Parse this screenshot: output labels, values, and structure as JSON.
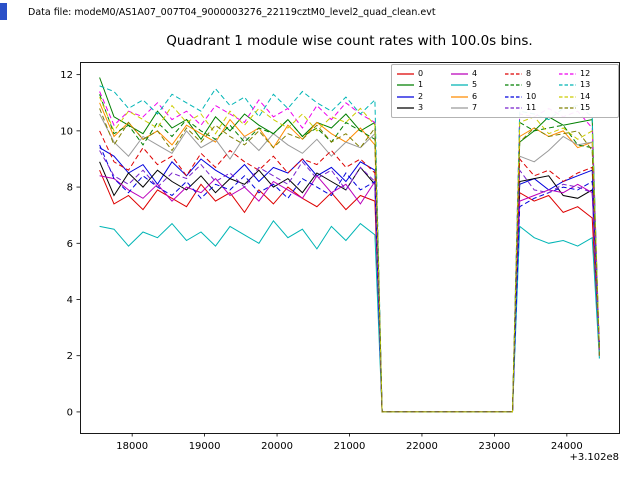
{
  "header": {
    "data_file_label": "Data file: modeM0/AS1A07_007T04_9000003276_22119cztM0_level2_quad_clean.evt"
  },
  "figure": {
    "background": "#ffffff",
    "frame_color": "#000000",
    "accent_marker_color": "#2a50c8"
  },
  "chart_data": {
    "type": "line",
    "title": "Quadrant 1 module wise count rates with 100.0s bins.",
    "xlabel": "",
    "ylabel": "",
    "x_offset_label": "+3.102e8",
    "xlim": [
      17280,
      24720
    ],
    "ylim": [
      -0.75,
      12.45
    ],
    "x_ticks": [
      18000,
      19000,
      20000,
      21000,
      22000,
      23000,
      24000
    ],
    "y_ticks": [
      0,
      2,
      4,
      6,
      8,
      10,
      12
    ],
    "grid": false,
    "legend_position": "upper right",
    "legend_columns": 4,
    "x": [
      17550,
      17750,
      17950,
      18150,
      18350,
      18550,
      18750,
      18950,
      19150,
      19350,
      19550,
      19750,
      19950,
      20150,
      20350,
      20550,
      20750,
      20950,
      21150,
      21350,
      21450,
      21650,
      21850,
      22050,
      22250,
      22450,
      22650,
      22850,
      23050,
      23250,
      23350,
      23550,
      23750,
      23950,
      24150,
      24350,
      24450
    ],
    "series": [
      {
        "label": "0",
        "color": "#dd0000",
        "dashed": false,
        "values": [
          8.6,
          7.4,
          7.7,
          7.2,
          7.9,
          7.6,
          7.3,
          8.1,
          7.5,
          7.8,
          7.1,
          7.9,
          7.4,
          8.0,
          7.6,
          7.3,
          7.8,
          7.2,
          7.7,
          7.5,
          0,
          0,
          0,
          0,
          0,
          0,
          0,
          0,
          0,
          0,
          7.8,
          7.5,
          7.7,
          7.1,
          7.3,
          6.9,
          2.0
        ]
      },
      {
        "label": "1",
        "color": "#007f00",
        "dashed": false,
        "values": [
          11.9,
          10.5,
          10.2,
          9.9,
          10.7,
          10.1,
          10.4,
          9.7,
          10.5,
          10.0,
          10.6,
          10.2,
          9.9,
          10.4,
          9.8,
          10.3,
          10.1,
          10.6,
          10.0,
          10.3,
          0,
          0,
          0,
          0,
          0,
          0,
          0,
          0,
          0,
          0,
          9.6,
          10.0,
          10.5,
          10.2,
          10.3,
          10.4,
          2.1
        ]
      },
      {
        "label": "2",
        "color": "#0000dd",
        "dashed": false,
        "values": [
          9.4,
          9.1,
          8.5,
          8.8,
          8.1,
          8.9,
          8.4,
          9.0,
          8.6,
          8.3,
          8.8,
          8.2,
          8.7,
          8.5,
          9.0,
          8.4,
          8.7,
          8.2,
          8.9,
          8.6,
          0,
          0,
          0,
          0,
          0,
          0,
          0,
          0,
          0,
          0,
          8.1,
          8.3,
          7.9,
          8.2,
          8.4,
          8.6,
          2.2
        ]
      },
      {
        "label": "3",
        "color": "#000000",
        "dashed": false,
        "values": [
          8.9,
          7.7,
          8.5,
          8.0,
          8.6,
          8.2,
          7.9,
          8.4,
          7.8,
          8.3,
          8.1,
          8.6,
          8.0,
          8.3,
          7.8,
          8.5,
          8.2,
          7.9,
          8.7,
          8.1,
          0,
          0,
          0,
          0,
          0,
          0,
          0,
          0,
          0,
          0,
          8.2,
          8.3,
          8.4,
          7.7,
          7.6,
          7.9,
          2.3
        ]
      },
      {
        "label": "4",
        "color": "#bb00bb",
        "dashed": false,
        "values": [
          8.4,
          8.3,
          7.9,
          7.6,
          8.1,
          7.5,
          8.0,
          7.8,
          8.3,
          7.7,
          8.0,
          7.5,
          8.2,
          7.9,
          7.6,
          8.4,
          7.8,
          8.1,
          7.4,
          8.2,
          0,
          0,
          0,
          0,
          0,
          0,
          0,
          0,
          0,
          0,
          7.5,
          7.7,
          7.9,
          7.8,
          8.1,
          7.8,
          2.4
        ]
      },
      {
        "label": "5",
        "color": "#00b5b5",
        "dashed": false,
        "values": [
          6.6,
          6.5,
          5.9,
          6.4,
          6.2,
          6.7,
          6.1,
          6.4,
          5.9,
          6.6,
          6.3,
          6.0,
          6.8,
          6.2,
          6.5,
          5.8,
          6.6,
          6.1,
          6.7,
          6.3,
          0,
          0,
          0,
          0,
          0,
          0,
          0,
          0,
          0,
          0,
          6.6,
          6.2,
          6.0,
          6.1,
          5.9,
          6.2,
          1.9
        ]
      },
      {
        "label": "6",
        "color": "#ff8c00",
        "dashed": false,
        "values": [
          11.0,
          9.8,
          10.3,
          9.7,
          10.0,
          9.5,
          10.2,
          9.9,
          9.6,
          10.4,
          9.8,
          10.1,
          9.4,
          10.2,
          9.7,
          10.3,
          9.9,
          9.6,
          10.1,
          9.5,
          0,
          0,
          0,
          0,
          0,
          0,
          0,
          0,
          0,
          0,
          9.8,
          10.1,
          9.8,
          10.0,
          9.4,
          9.6,
          2.0
        ]
      },
      {
        "label": "7",
        "color": "#9a9a9a",
        "dashed": false,
        "values": [
          10.6,
          9.6,
          9.1,
          9.8,
          9.5,
          9.2,
          10.0,
          9.4,
          9.7,
          9.0,
          9.8,
          9.3,
          9.9,
          9.5,
          9.2,
          9.7,
          9.1,
          9.6,
          9.4,
          9.9,
          0,
          0,
          0,
          0,
          0,
          0,
          0,
          0,
          0,
          0,
          9.1,
          8.9,
          9.3,
          9.8,
          9.5,
          9.6,
          2.1
        ]
      },
      {
        "label": "8",
        "color": "#dd0000",
        "dashed": true,
        "values": [
          10.0,
          8.9,
          8.6,
          9.4,
          8.8,
          9.1,
          8.4,
          9.2,
          8.7,
          9.3,
          8.9,
          8.6,
          9.1,
          8.5,
          9.0,
          8.8,
          9.3,
          8.7,
          9.0,
          8.5,
          0,
          0,
          0,
          0,
          0,
          0,
          0,
          0,
          0,
          0,
          9.0,
          8.4,
          8.6,
          8.2,
          8.5,
          8.7,
          2.2
        ]
      },
      {
        "label": "9",
        "color": "#007f00",
        "dashed": true,
        "values": [
          11.3,
          9.9,
          10.2,
          9.5,
          10.3,
          9.8,
          10.4,
          10.0,
          9.7,
          10.2,
          9.6,
          10.1,
          9.9,
          10.4,
          9.8,
          10.1,
          9.6,
          10.3,
          10.0,
          9.7,
          0,
          0,
          0,
          0,
          0,
          0,
          0,
          0,
          0,
          0,
          10.3,
          10.0,
          10.1,
          10.2,
          9.5,
          9.4,
          2.3
        ]
      },
      {
        "label": "10",
        "color": "#0000dd",
        "dashed": true,
        "values": [
          9.5,
          8.3,
          7.8,
          8.4,
          8.0,
          7.7,
          8.2,
          7.6,
          8.1,
          7.9,
          8.4,
          7.8,
          8.1,
          7.6,
          8.3,
          8.0,
          7.7,
          8.5,
          7.9,
          8.2,
          0,
          0,
          0,
          0,
          0,
          0,
          0,
          0,
          0,
          0,
          7.3,
          7.6,
          7.8,
          8.0,
          7.9,
          8.2,
          2.4
        ]
      },
      {
        "label": "11",
        "color": "#7722cc",
        "dashed": true,
        "values": [
          9.3,
          8.4,
          8.1,
          8.6,
          8.0,
          8.5,
          8.3,
          8.8,
          8.2,
          8.5,
          8.0,
          8.7,
          8.4,
          8.1,
          8.9,
          8.3,
          8.6,
          7.9,
          8.7,
          8.2,
          0,
          0,
          0,
          0,
          0,
          0,
          0,
          0,
          0,
          0,
          8.6,
          7.9,
          7.8,
          8.1,
          8.0,
          7.8,
          2.0
        ]
      },
      {
        "label": "12",
        "color": "#ee00ee",
        "dashed": true,
        "values": [
          11.4,
          10.2,
          10.7,
          10.5,
          11.0,
          10.4,
          10.7,
          10.2,
          10.9,
          10.6,
          10.3,
          11.1,
          10.5,
          10.8,
          10.1,
          10.9,
          10.4,
          11.0,
          10.6,
          10.3,
          0,
          0,
          0,
          0,
          0,
          0,
          0,
          0,
          0,
          0,
          10.6,
          10.5,
          10.8,
          10.5,
          10.7,
          10.1,
          2.1
        ]
      },
      {
        "label": "13",
        "color": "#00b5b5",
        "dashed": true,
        "values": [
          11.6,
          11.4,
          10.8,
          11.1,
          10.6,
          11.3,
          11.0,
          10.7,
          11.5,
          10.9,
          11.2,
          10.5,
          11.3,
          10.8,
          11.4,
          11.0,
          10.7,
          11.2,
          10.6,
          11.1,
          0,
          0,
          0,
          0,
          0,
          0,
          0,
          0,
          0,
          0,
          10.7,
          10.6,
          10.4,
          10.8,
          10.9,
          10.5,
          1.9
        ]
      },
      {
        "label": "14",
        "color": "#cccc00",
        "dashed": true,
        "values": [
          11.2,
          10.0,
          10.7,
          10.4,
          10.1,
          10.9,
          10.3,
          10.6,
          9.9,
          10.7,
          10.2,
          10.8,
          10.4,
          10.1,
          10.6,
          10.0,
          10.5,
          10.3,
          10.8,
          10.2,
          0,
          0,
          0,
          0,
          0,
          0,
          0,
          0,
          0,
          0,
          10.3,
          10.5,
          9.9,
          10.1,
          9.7,
          10.0,
          2.2
        ]
      },
      {
        "label": "15",
        "color": "#808000",
        "dashed": true,
        "values": [
          10.8,
          9.5,
          10.3,
          9.7,
          10.0,
          9.3,
          10.1,
          9.6,
          10.2,
          9.8,
          9.5,
          10.0,
          9.4,
          9.9,
          9.7,
          10.2,
          9.6,
          9.9,
          9.4,
          10.1,
          0,
          0,
          0,
          0,
          0,
          0,
          0,
          0,
          0,
          0,
          9.6,
          10.1,
          9.8,
          9.9,
          10.0,
          9.3,
          2.0
        ]
      }
    ]
  }
}
